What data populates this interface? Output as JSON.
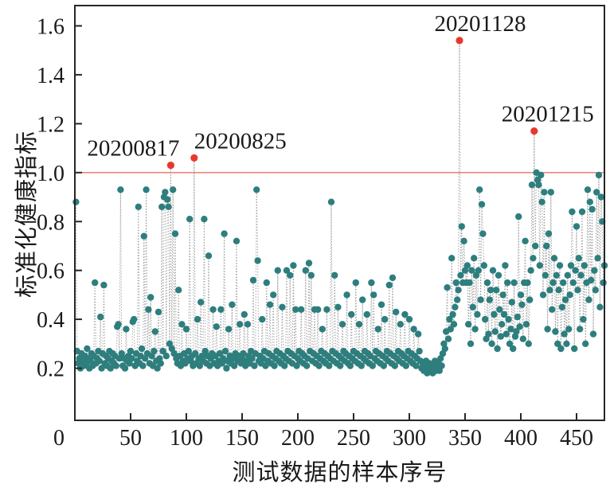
{
  "figure_title": "",
  "chart_data": {
    "type": "scatter",
    "title": "",
    "xlabel": "测试数据的样本序号",
    "ylabel": "标准化健康指标",
    "xlim": [
      0,
      475
    ],
    "ylim": [
      -0.013,
      1.683
    ],
    "grid": false,
    "legend": "none",
    "x_ticks": [
      0,
      50,
      100,
      150,
      200,
      250,
      300,
      350,
      400,
      450
    ],
    "x_tick_labels": [
      "0",
      "50",
      "100",
      "150",
      "200",
      "250",
      "300",
      "350",
      "400",
      "450"
    ],
    "y_ticks": [
      0.2,
      0.4,
      0.6,
      0.8,
      1.0,
      1.2,
      1.4,
      1.6
    ],
    "y_tick_labels": [
      "0.2",
      "0.4",
      "0.6",
      "0.8",
      "1.0",
      "1.2",
      "1.4",
      "1.6"
    ],
    "threshold": {
      "value": 1.0,
      "color": "#ed7065"
    },
    "colors": {
      "point": "#2e7e7e",
      "anomaly": "#e8382c",
      "connector": "#979797",
      "frame": "#262626",
      "text": "#1a1a1a",
      "background": "#ffffff"
    },
    "anomalies": [
      {
        "x": 86,
        "y": 1.03,
        "label": "20200817",
        "dx": -47
      },
      {
        "x": 107,
        "y": 1.06,
        "label": "20200825",
        "dx": 58
      },
      {
        "x": 345,
        "y": 1.54,
        "label": "20201128",
        "dx": 26
      },
      {
        "x": 412,
        "y": 1.17,
        "label": "20201215",
        "dx": 17
      }
    ],
    "y_values": [
      0.88,
      0.27,
      0.22,
      0.24,
      0.2,
      0.26,
      0.23,
      0.21,
      0.25,
      0.22,
      0.28,
      0.24,
      0.2,
      0.23,
      0.26,
      0.21,
      0.25,
      0.55,
      0.22,
      0.24,
      0.27,
      0.23,
      0.41,
      0.2,
      0.26,
      0.54,
      0.22,
      0.25,
      0.21,
      0.24,
      0.27,
      0.2,
      0.23,
      0.26,
      0.22,
      0.25,
      0.21,
      0.37,
      0.38,
      0.24,
      0.93,
      0.26,
      0.21,
      0.24,
      0.2,
      0.36,
      0.23,
      0.25,
      0.22,
      0.27,
      0.24,
      0.39,
      0.4,
      0.21,
      0.26,
      0.23,
      0.86,
      0.22,
      0.25,
      0.28,
      0.21,
      0.74,
      0.24,
      0.93,
      0.26,
      0.44,
      0.22,
      0.49,
      0.25,
      0.21,
      0.27,
      0.35,
      0.23,
      0.2,
      0.43,
      0.24,
      0.22,
      0.86,
      0.27,
      0.9,
      0.92,
      0.25,
      0.89,
      0.86,
      0.3,
      1.03,
      0.28,
      0.93,
      0.26,
      0.75,
      0.24,
      0.22,
      0.52,
      0.25,
      0.21,
      0.38,
      0.23,
      0.26,
      0.22,
      0.36,
      0.24,
      0.27,
      0.81,
      0.23,
      0.25,
      0.21,
      1.06,
      0.26,
      0.22,
      0.4,
      0.24,
      0.21,
      0.47,
      0.25,
      0.23,
      0.81,
      0.27,
      0.22,
      0.25,
      0.66,
      0.21,
      0.24,
      0.26,
      0.44,
      0.22,
      0.25,
      0.37,
      0.21,
      0.23,
      0.26,
      0.44,
      0.22,
      0.24,
      0.75,
      0.27,
      0.2,
      0.23,
      0.36,
      0.25,
      0.22,
      0.46,
      0.24,
      0.21,
      0.26,
      0.72,
      0.23,
      0.25,
      0.38,
      0.22,
      0.24,
      0.26,
      0.42,
      0.21,
      0.23,
      0.38,
      0.25,
      0.22,
      0.27,
      0.24,
      0.56,
      0.21,
      0.26,
      0.93,
      0.64,
      0.23,
      0.25,
      0.22,
      0.4,
      0.24,
      0.27,
      0.21,
      0.55,
      0.23,
      0.26,
      0.46,
      0.22,
      0.25,
      0.5,
      0.21,
      0.24,
      0.27,
      0.6,
      0.23,
      0.26,
      0.22,
      0.45,
      0.25,
      0.21,
      0.24,
      0.6,
      0.27,
      0.23,
      0.58,
      0.26,
      0.22,
      0.62,
      0.25,
      0.44,
      0.21,
      0.24,
      0.27,
      0.23,
      0.44,
      0.26,
      0.22,
      0.25,
      0.6,
      0.21,
      0.24,
      0.63,
      0.27,
      0.58,
      0.23,
      0.26,
      0.44,
      0.22,
      0.25,
      0.44,
      0.21,
      0.24,
      0.27,
      0.36,
      0.23,
      0.26,
      0.22,
      0.44,
      0.25,
      0.21,
      0.24,
      0.88,
      0.27,
      0.23,
      0.58,
      0.26,
      0.22,
      0.45,
      0.25,
      0.21,
      0.24,
      0.38,
      0.27,
      0.23,
      0.26,
      0.5,
      0.22,
      0.25,
      0.21,
      0.42,
      0.24,
      0.27,
      0.23,
      0.55,
      0.26,
      0.22,
      0.38,
      0.25,
      0.21,
      0.48,
      0.24,
      0.27,
      0.23,
      0.42,
      0.26,
      0.22,
      0.25,
      0.55,
      0.21,
      0.5,
      0.24,
      0.27,
      0.23,
      0.36,
      0.26,
      0.22,
      0.46,
      0.25,
      0.21,
      0.4,
      0.24,
      0.27,
      0.23,
      0.54,
      0.26,
      0.22,
      0.57,
      0.25,
      0.21,
      0.43,
      0.24,
      0.27,
      0.23,
      0.38,
      0.26,
      0.22,
      0.25,
      0.42,
      0.21,
      0.24,
      0.27,
      0.4,
      0.23,
      0.26,
      0.22,
      0.36,
      0.25,
      0.21,
      0.24,
      0.34,
      0.27,
      0.23,
      0.2,
      0.22,
      0.19,
      0.21,
      0.23,
      0.18,
      0.2,
      0.22,
      0.19,
      0.21,
      0.18,
      0.2,
      0.23,
      0.19,
      0.21,
      0.22,
      0.19,
      0.24,
      0.21,
      0.26,
      0.3,
      0.28,
      0.35,
      0.53,
      0.32,
      0.4,
      0.36,
      0.65,
      0.42,
      0.38,
      0.45,
      0.55,
      0.48,
      0.52,
      1.54,
      0.58,
      0.78,
      0.55,
      0.72,
      0.6,
      0.55,
      0.62,
      0.38,
      0.55,
      0.3,
      0.6,
      0.45,
      0.65,
      0.36,
      0.58,
      0.42,
      0.6,
      0.93,
      0.48,
      0.87,
      0.75,
      0.62,
      0.4,
      0.32,
      0.55,
      0.34,
      0.48,
      0.52,
      0.3,
      0.6,
      0.42,
      0.35,
      0.52,
      0.28,
      0.58,
      0.44,
      0.33,
      0.38,
      0.5,
      0.42,
      0.62,
      0.34,
      0.55,
      0.4,
      0.3,
      0.36,
      0.47,
      0.28,
      0.55,
      0.33,
      0.35,
      0.41,
      0.82,
      0.37,
      0.5,
      0.46,
      0.32,
      0.55,
      0.72,
      0.38,
      0.55,
      0.3,
      0.48,
      0.6,
      0.95,
      0.65,
      1.17,
      0.7,
      1.0,
      0.97,
      0.95,
      0.62,
      0.99,
      0.88,
      0.5,
      0.92,
      0.58,
      0.7,
      0.36,
      0.75,
      0.52,
      0.92,
      0.44,
      0.55,
      0.65,
      0.35,
      0.58,
      0.3,
      0.52,
      0.62,
      0.28,
      0.45,
      0.55,
      0.34,
      0.48,
      0.3,
      0.58,
      0.36,
      0.5,
      0.62,
      0.84,
      0.55,
      0.28,
      0.6,
      0.78,
      0.52,
      0.65,
      0.36,
      0.58,
      0.84,
      0.4,
      0.62,
      0.3,
      0.55,
      0.93,
      0.48,
      0.88,
      0.56,
      0.85,
      0.34,
      0.6,
      0.52,
      0.92,
      0.65,
      0.99,
      0.45,
      0.9,
      0.8,
      0.55,
      0.62
    ]
  }
}
